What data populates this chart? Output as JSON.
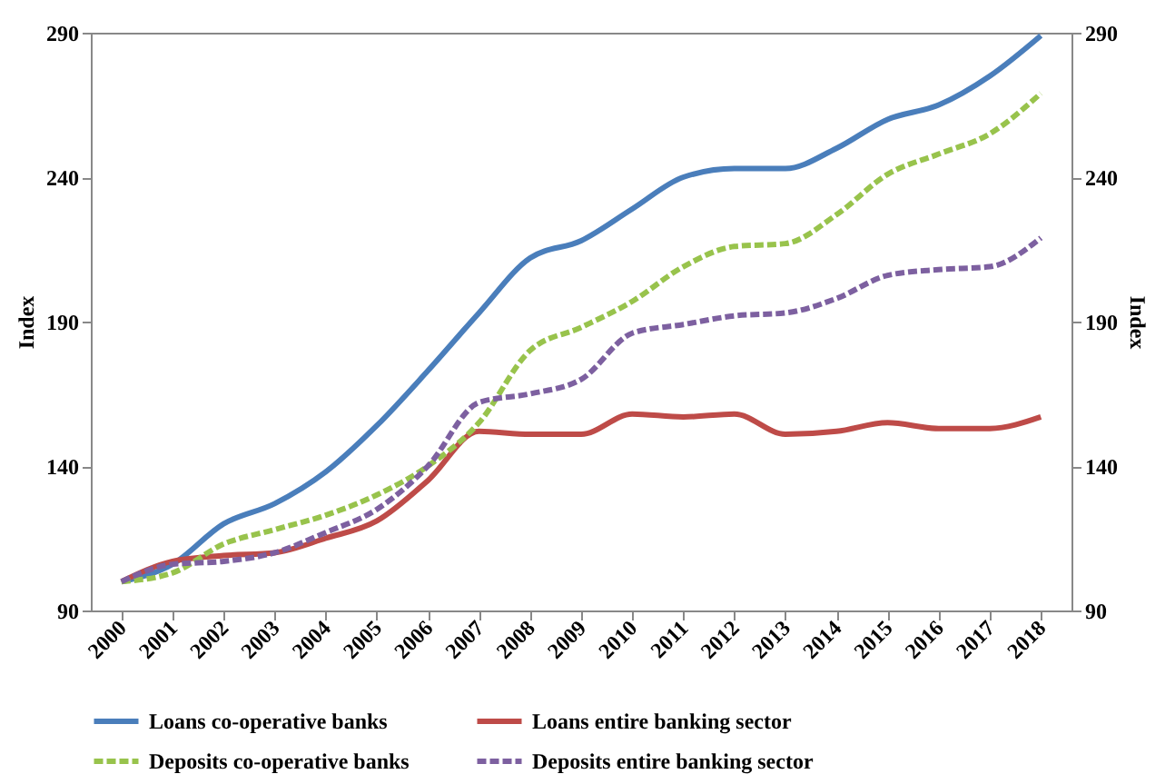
{
  "chart_data": {
    "type": "line",
    "ylabel": "Index",
    "y2label": "Index",
    "categories": [
      "2000",
      "2001",
      "2002",
      "2003",
      "2004",
      "2005",
      "2006",
      "2007",
      "2008",
      "2009",
      "2010",
      "2011",
      "2012",
      "2013",
      "2014",
      "2015",
      "2016",
      "2017",
      "2018"
    ],
    "series": [
      {
        "name": "Loans co-operative banks",
        "color": "#4a7ebb",
        "line_style": "solid",
        "values": [
          100,
          106,
          120,
          127,
          138,
          154,
          173,
          193,
          212,
          218,
          229,
          240,
          243,
          243,
          250,
          260,
          265,
          275,
          289
        ]
      },
      {
        "name": "Loans entire banking sector",
        "color": "#be4b48",
        "line_style": "solid",
        "values": [
          100,
          107,
          109,
          110,
          115,
          121,
          135,
          152,
          151,
          151,
          158,
          157,
          158,
          151,
          152,
          155,
          153,
          153,
          157
        ]
      },
      {
        "name": "Deposits co-operative banks",
        "color": "#98c34c",
        "line_style": "dashed",
        "values": [
          100,
          103,
          113,
          118,
          123,
          130,
          140,
          155,
          180,
          188,
          197,
          209,
          216,
          217,
          227,
          241,
          248,
          255,
          269
        ]
      },
      {
        "name": "Deposits entire banking sector",
        "color": "#7d60a0",
        "line_style": "dashed",
        "values": [
          100,
          106,
          107,
          110,
          117,
          125,
          140,
          162,
          165,
          170,
          186,
          189,
          192,
          193,
          198,
          206,
          208,
          209,
          219
        ]
      }
    ],
    "ylim": [
      90,
      290
    ],
    "yticks": [
      90,
      140,
      190,
      240,
      290
    ],
    "y2lim": [
      90,
      290
    ],
    "y2ticks": [
      90,
      140,
      190,
      240,
      290
    ],
    "grid": false,
    "legend": "bottom",
    "marker": "none"
  }
}
